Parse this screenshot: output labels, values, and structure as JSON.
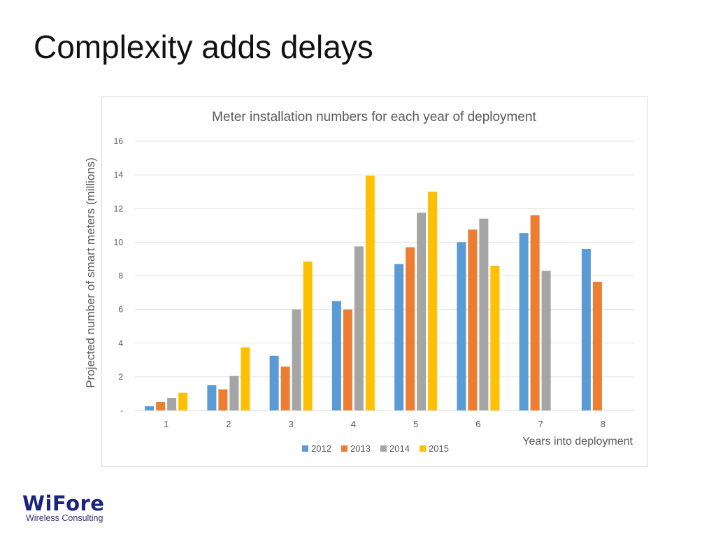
{
  "slide": {
    "title": "Complexity adds delays"
  },
  "logo": {
    "name": "WiFore",
    "tagline": "Wireless Consulting"
  },
  "colors": {
    "2012": "#5b9bd5",
    "2013": "#ed7d31",
    "2014": "#a5a5a5",
    "2015": "#ffc000"
  },
  "chart_data": {
    "type": "bar",
    "title": "Meter installation numbers for each year of deployment",
    "xlabel": "Years into deployment",
    "ylabel": "Projected number of smart meters  (millions)",
    "categories": [
      "1",
      "2",
      "3",
      "4",
      "5",
      "6",
      "7",
      "8"
    ],
    "ylim": [
      0,
      16
    ],
    "yticks": [
      "-",
      "2",
      "4",
      "6",
      "8",
      "10",
      "12",
      "14",
      "16"
    ],
    "grid": true,
    "legend_position": "bottom",
    "series": [
      {
        "name": "2012",
        "values": [
          0.25,
          1.5,
          3.25,
          6.5,
          8.7,
          10.0,
          10.55,
          9.6
        ]
      },
      {
        "name": "2013",
        "values": [
          0.5,
          1.25,
          2.6,
          6.0,
          9.7,
          10.75,
          11.6,
          7.65
        ]
      },
      {
        "name": "2014",
        "values": [
          0.75,
          2.05,
          6.0,
          9.75,
          11.75,
          11.4,
          8.3,
          null
        ]
      },
      {
        "name": "2015",
        "values": [
          1.05,
          3.75,
          8.85,
          13.95,
          13.0,
          8.6,
          null,
          null
        ]
      }
    ]
  }
}
